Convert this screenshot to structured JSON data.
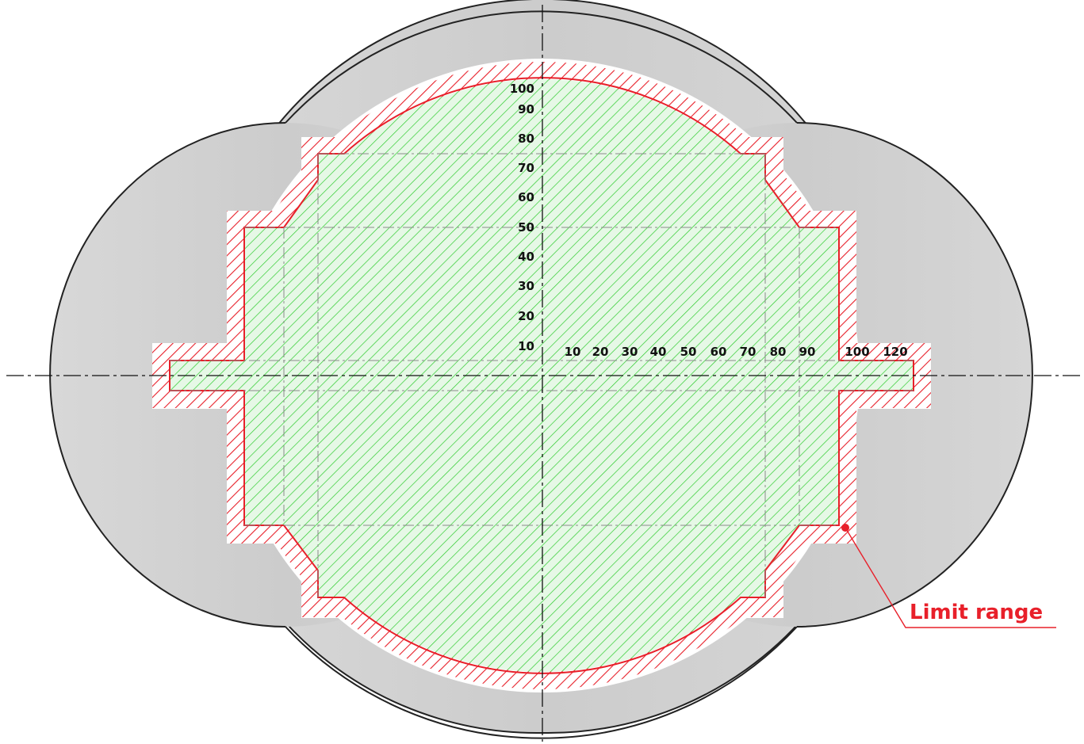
{
  "x_ticks": [
    "10",
    "20",
    "30",
    "40",
    "50",
    "60",
    "70",
    "80",
    "90",
    "100",
    "120"
  ],
  "y_ticks": [
    "10",
    "20",
    "30",
    "40",
    "50",
    "60",
    "70",
    "80",
    "90",
    "100"
  ],
  "callout": {
    "label": "Limit range"
  },
  "colors": {
    "body_fill": "#d2d2d2",
    "body_stroke": "#222222",
    "limit_color": "#e8202a",
    "inner_hatch": "#2ecc2e",
    "inner_fill": "#e6f8e6",
    "halo": "#ffffff",
    "axis": "#111111",
    "grid": "#8a8a8a"
  },
  "icons": {
    "callout_marker": "dot-icon"
  }
}
